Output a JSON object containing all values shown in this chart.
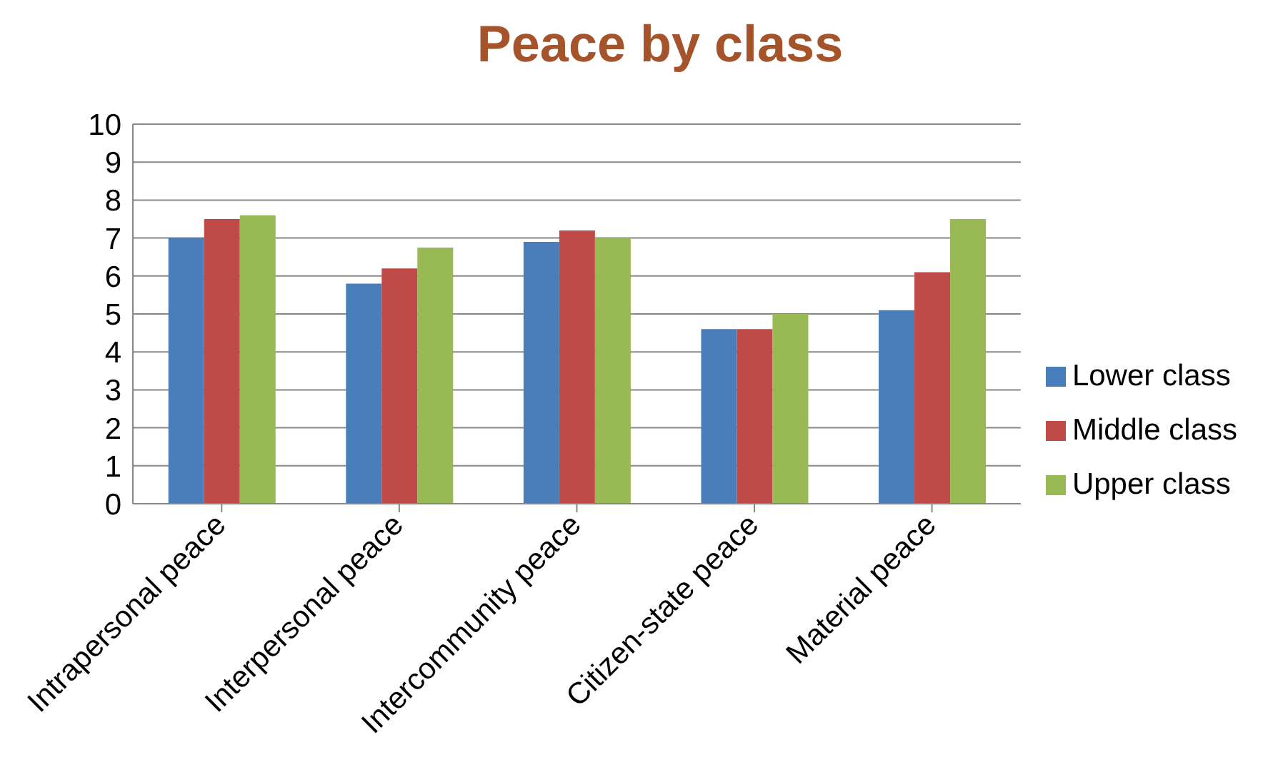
{
  "chart_data": {
    "type": "bar",
    "title": "Peace by class",
    "categories": [
      "Intrapersonal peace",
      "Interpersonal peace",
      "Intercommunity peace",
      "Citizen-state peace",
      "Material peace"
    ],
    "series": [
      {
        "name": "Lower class",
        "color": "#4a7ebb",
        "values": [
          7.0,
          5.8,
          6.9,
          4.6,
          5.1
        ]
      },
      {
        "name": "Middle class",
        "color": "#be4b48",
        "values": [
          7.5,
          6.2,
          7.2,
          4.6,
          6.1
        ]
      },
      {
        "name": "Upper class",
        "color": "#98b954",
        "values": [
          7.6,
          6.75,
          7.0,
          5.0,
          7.5
        ]
      }
    ],
    "ylim": [
      0,
      10
    ],
    "yticks": [
      0,
      1,
      2,
      3,
      4,
      5,
      6,
      7,
      8,
      9,
      10
    ],
    "grid": "y",
    "legend": "right"
  }
}
